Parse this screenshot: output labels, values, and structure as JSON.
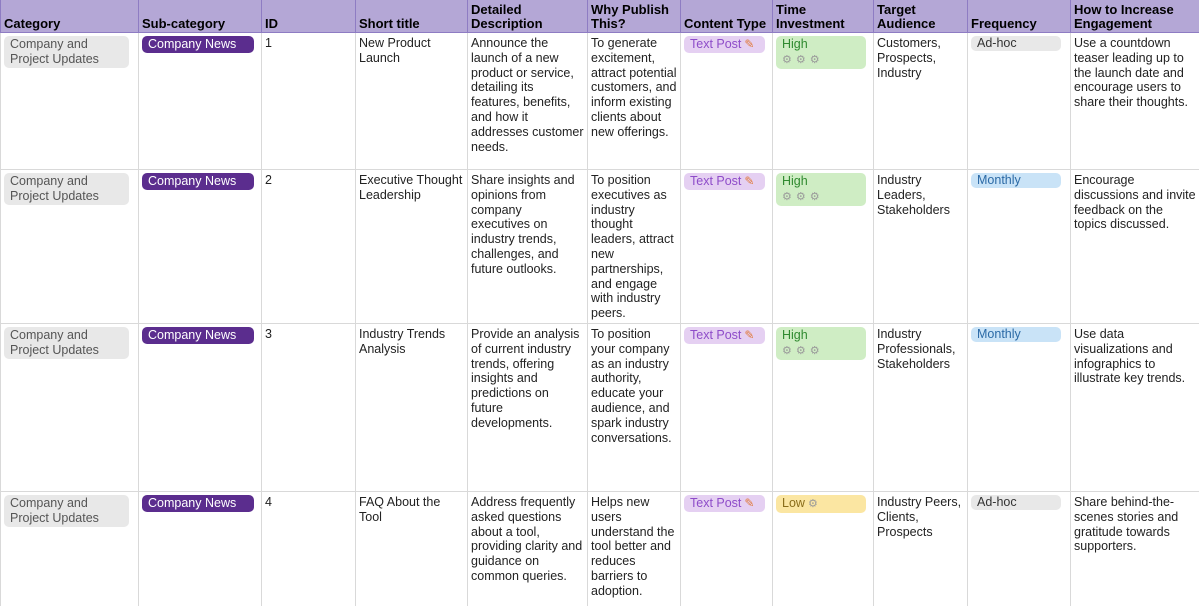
{
  "headers": [
    "Category",
    "Sub-category",
    "ID",
    "Short title",
    "Detailed Description",
    "Why Publish This?",
    "Content Type",
    "Time Investment",
    "Target Audience",
    "Frequency",
    "How to Increase Engagement"
  ],
  "rows": [
    {
      "category": "Company and Project Updates",
      "subcategory": "Company News",
      "id": "1",
      "short_title": "New Product Launch",
      "description": "Announce the launch of a new product or service, detailing its features, benefits, and how it addresses customer needs.",
      "why": "To generate excitement, attract potential customers, and inform existing clients about new offerings.",
      "content_type": "Text Post",
      "time_investment": "High",
      "time_level": "high",
      "audience": "Customers, Prospects, Industry",
      "frequency": "Ad-hoc",
      "frequency_kind": "adhoc",
      "engagement": "Use a countdown teaser leading up to the launch date and encourage users to share their thoughts."
    },
    {
      "category": "Company and Project Updates",
      "subcategory": "Company News",
      "id": "2",
      "short_title": "Executive Thought Leadership",
      "description": "Share insights and opinions from company executives on industry trends, challenges, and future outlooks.",
      "why": "To position executives as industry thought leaders, attract new partnerships, and engage with industry peers.",
      "content_type": "Text Post",
      "time_investment": "High",
      "time_level": "high",
      "audience": "Industry Leaders, Stakeholders",
      "frequency": "Monthly",
      "frequency_kind": "monthly",
      "engagement": "Encourage discussions and invite feedback on the topics discussed."
    },
    {
      "category": "Company and Project Updates",
      "subcategory": "Company News",
      "id": "3",
      "short_title": "Industry Trends Analysis",
      "description": "Provide an analysis of current industry trends, offering insights and predictions on future developments.",
      "why": "To position your company as an industry authority, educate your audience, and spark industry conversations.",
      "content_type": "Text Post",
      "time_investment": "High",
      "time_level": "high",
      "audience": "Industry Professionals, Stakeholders",
      "frequency": "Monthly",
      "frequency_kind": "monthly",
      "engagement": "Use data visualizations and infographics to illustrate key trends."
    },
    {
      "category": "Company and Project Updates",
      "subcategory": "Company News",
      "id": "4",
      "short_title": "FAQ About the Tool",
      "description": "Address frequently asked questions about a tool, providing clarity and guidance on common queries.",
      "why": "Helps new users understand the tool better and reduces barriers to adoption.",
      "content_type": "Text Post",
      "time_investment": "Low",
      "time_level": "low",
      "audience": "Industry Peers, Clients, Prospects",
      "frequency": "Ad-hoc",
      "frequency_kind": "adhoc",
      "engagement": "Share behind-the-scenes stories and gratitude towards supporters."
    }
  ],
  "icons": {
    "content_type_icon": "pencil-icon",
    "time_investment_icon": "gear-icon"
  },
  "colors": {
    "header_bg": "#b4a7d6",
    "subcategory_chip": "#5b2d8e",
    "content_type_chip": "#e5d0f2",
    "high_chip": "#cfedc4",
    "low_chip": "#fbe6a2",
    "monthly_chip": "#c9e3f7",
    "adhoc_chip": "#e8e8e8"
  }
}
